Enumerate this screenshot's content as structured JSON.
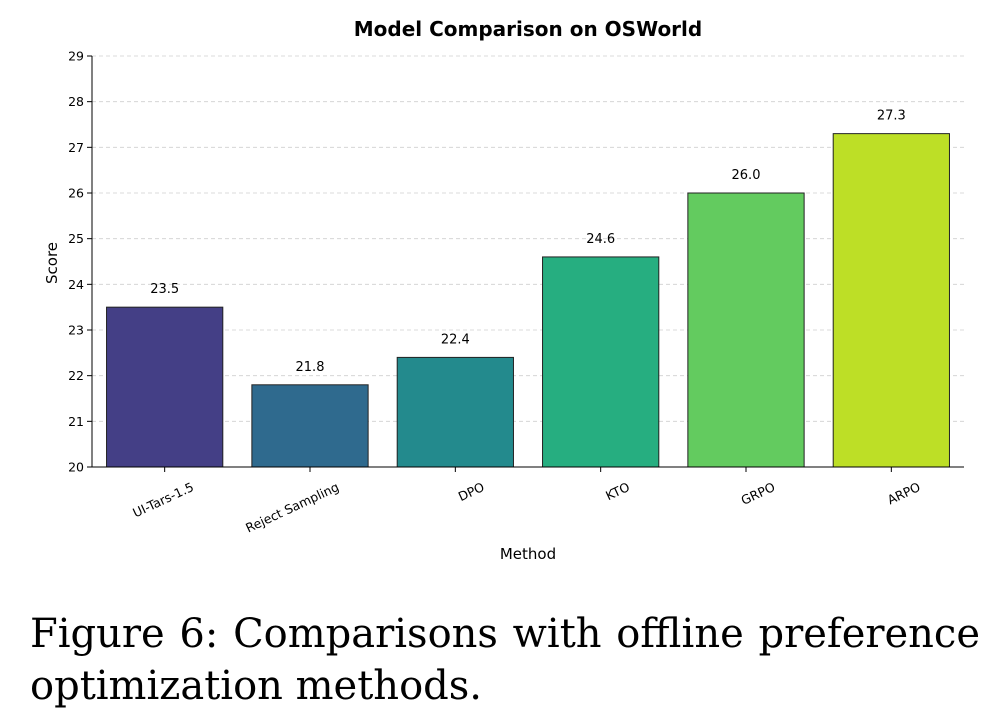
{
  "chart_data": {
    "type": "bar",
    "title": "Model Comparison on OSWorld",
    "xlabel": "Method",
    "ylabel": "Score",
    "categories": [
      "UI-Tars-1.5",
      "Reject Sampling",
      "DPO",
      "KTO",
      "GRPO",
      "ARPO"
    ],
    "values": [
      23.5,
      21.8,
      22.4,
      24.6,
      26.0,
      27.3
    ],
    "value_labels": [
      "23.5",
      "21.8",
      "22.4",
      "24.6",
      "26.0",
      "27.3"
    ],
    "colors": [
      "#443F86",
      "#2F6A8E",
      "#238A8D",
      "#26AE80",
      "#63CB5F",
      "#BDDF26"
    ],
    "ylim": [
      20,
      29
    ],
    "yticks": [
      "20",
      "21",
      "22",
      "23",
      "24",
      "25",
      "26",
      "27",
      "28",
      "29"
    ],
    "grid": true
  },
  "caption": {
    "text": "Figure 6: Comparisons with offline preference optimization methods."
  }
}
